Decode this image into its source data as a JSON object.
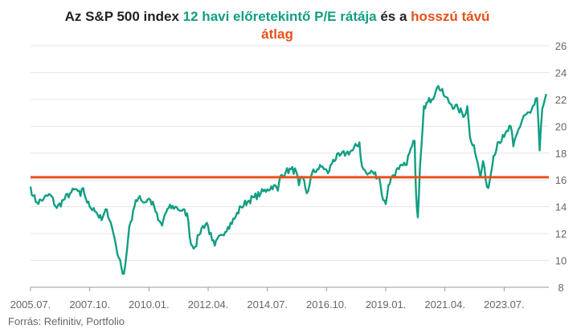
{
  "title": {
    "part1": "Az S&P 500 index ",
    "part2": "12 havi előretekintő P/E rátája",
    "part3": " és a ",
    "part4": "hosszú távú",
    "part5": "átlag"
  },
  "source": "Forrás: Refinitiv, Portfolio",
  "colors": {
    "pe": "#129e82",
    "average": "#e8501a",
    "axis": "#999999"
  },
  "chart_data": {
    "type": "line",
    "xlim": [
      2005.5,
      2025.2
    ],
    "ylim": [
      8,
      26
    ],
    "y_ticks": [
      8,
      10,
      12,
      14,
      16,
      18,
      20,
      22,
      24,
      26
    ],
    "x_ticks": [
      {
        "x": 2005.5,
        "label": "2005.07."
      },
      {
        "x": 2007.75,
        "label": "2007.10."
      },
      {
        "x": 2010.0,
        "label": "2010.01."
      },
      {
        "x": 2012.25,
        "label": "2012.04."
      },
      {
        "x": 2014.5,
        "label": "2014.07."
      },
      {
        "x": 2016.75,
        "label": "2016.10."
      },
      {
        "x": 2019.0,
        "label": "2019.01."
      },
      {
        "x": 2021.25,
        "label": "2021.04."
      },
      {
        "x": 2023.5,
        "label": "2023.07."
      }
    ],
    "series": [
      {
        "x": [
          2005.5,
          2005.6,
          2005.75,
          2006.0,
          2006.25,
          2006.5,
          2006.75,
          2007.0,
          2007.25,
          2007.4,
          2007.5,
          2007.6,
          2007.75,
          2007.9,
          2008.0,
          2008.2,
          2008.4,
          2008.55,
          2008.7,
          2008.85,
          2008.95,
          2009.05,
          2009.15,
          2009.25,
          2009.35,
          2009.5,
          2009.65,
          2009.8,
          2010.0,
          2010.2,
          2010.35,
          2010.5,
          2010.6,
          2010.75,
          2011.0,
          2011.25,
          2011.45,
          2011.6,
          2011.75,
          2011.9,
          2012.0,
          2012.2,
          2012.4,
          2012.5,
          2012.75,
          2013.0,
          2013.25,
          2013.5,
          2013.75,
          2014.0,
          2014.25,
          2014.5,
          2014.75,
          2014.9,
          2015.0,
          2015.2,
          2015.4,
          2015.6,
          2015.7,
          2015.85,
          2016.0,
          2016.1,
          2016.2,
          2016.4,
          2016.6,
          2016.8,
          2016.95,
          2017.0,
          2017.25,
          2017.5,
          2017.75,
          2018.0,
          2018.05,
          2018.15,
          2018.3,
          2018.5,
          2018.75,
          2018.9,
          2019.0,
          2019.1,
          2019.25,
          2019.5,
          2019.75,
          2020.0,
          2020.1,
          2020.15,
          2020.22,
          2020.3,
          2020.45,
          2020.6,
          2020.75,
          2020.9,
          2021.0,
          2021.25,
          2021.5,
          2021.75,
          2022.0,
          2022.1,
          2022.2,
          2022.35,
          2022.45,
          2022.6,
          2022.7,
          2022.8,
          2022.9,
          2023.0,
          2023.1,
          2023.25,
          2023.5,
          2023.75,
          2023.85,
          2024.0,
          2024.25,
          2024.5,
          2024.65,
          2024.75,
          2024.85,
          2024.95,
          2025.1
        ],
        "y": [
          15.5,
          14.8,
          14.3,
          14.6,
          14.9,
          13.9,
          14.5,
          15.0,
          15.3,
          14.8,
          15.4,
          14.6,
          14.0,
          13.9,
          13.6,
          13.0,
          13.8,
          12.8,
          11.6,
          10.2,
          9.5,
          9.0,
          10.5,
          12.5,
          13.0,
          14.5,
          14.8,
          14.3,
          14.6,
          14.0,
          13.0,
          12.6,
          13.4,
          13.9,
          14.0,
          13.7,
          13.5,
          11.2,
          11.0,
          11.9,
          12.4,
          12.8,
          11.5,
          11.1,
          11.9,
          12.5,
          13.1,
          14.0,
          14.4,
          14.7,
          15.0,
          15.3,
          15.6,
          15.2,
          16.3,
          16.6,
          16.8,
          16.6,
          15.6,
          16.2,
          15.0,
          15.6,
          16.5,
          16.8,
          17.0,
          16.5,
          17.2,
          17.5,
          17.8,
          18.0,
          18.2,
          18.8,
          17.6,
          16.8,
          16.4,
          16.6,
          16.2,
          14.5,
          14.2,
          15.6,
          16.3,
          16.8,
          17.1,
          18.5,
          18.9,
          15.0,
          13.2,
          17.0,
          21.5,
          21.8,
          22.0,
          22.6,
          23.0,
          22.2,
          21.6,
          21.3,
          20.8,
          21.5,
          19.2,
          18.6,
          17.6,
          16.2,
          17.4,
          16.0,
          15.4,
          16.5,
          17.8,
          18.8,
          19.2,
          20.0,
          18.5,
          19.5,
          20.8,
          21.0,
          21.6,
          22.1,
          18.2,
          21.3,
          22.4
        ]
      }
    ],
    "average": 16.2
  }
}
